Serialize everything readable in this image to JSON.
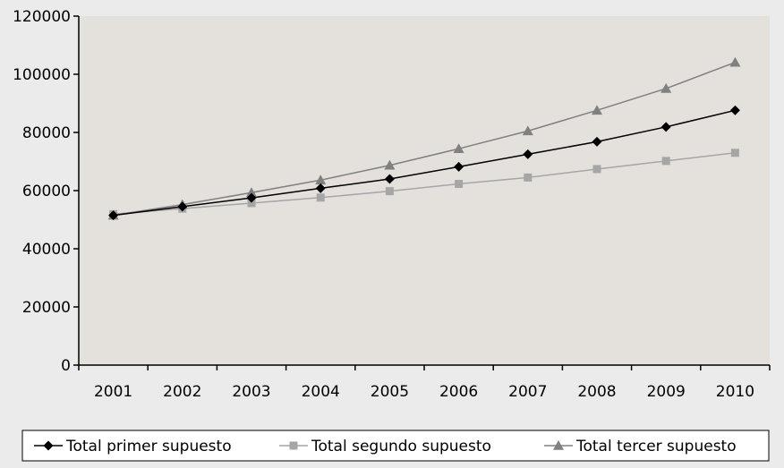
{
  "chart_data": {
    "type": "line",
    "title": "",
    "xlabel": "",
    "ylabel": "",
    "categories": [
      "2001",
      "2002",
      "2003",
      "2004",
      "2005",
      "2006",
      "2007",
      "2008",
      "2009",
      "2010"
    ],
    "ylim": [
      0,
      120000
    ],
    "yticks": [
      "0",
      "20000",
      "40000",
      "60000",
      "80000",
      "100000",
      "120000"
    ],
    "grid": false,
    "legend_position": "bottom",
    "series": [
      {
        "name": "Total primer supuesto",
        "marker": "diamond",
        "color": "#000000",
        "values": [
          51500,
          54500,
          57500,
          60800,
          64000,
          68200,
          72500,
          76800,
          81900,
          87600
        ]
      },
      {
        "name": "Total segundo supuesto",
        "marker": "square",
        "color": "#a6a6a6",
        "values": [
          51900,
          53800,
          55700,
          57600,
          59800,
          62300,
          64500,
          67400,
          70200,
          73000
        ]
      },
      {
        "name": "Total tercer supuesto",
        "marker": "triangle",
        "color": "#808080",
        "values": [
          51500,
          55200,
          59300,
          63600,
          68700,
          74400,
          80500,
          87600,
          95100,
          104100
        ]
      }
    ]
  }
}
